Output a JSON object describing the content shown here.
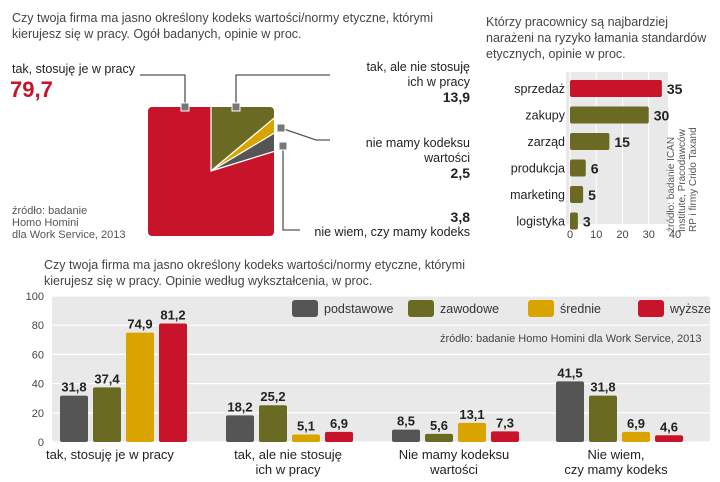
{
  "colors": {
    "red": "#c7142b",
    "olive": "#6b6a22",
    "gold": "#d9a300",
    "gray": "#555555",
    "panel": "#e9e9e9"
  },
  "chart_data": [
    {
      "type": "pie",
      "title": "Czy twoja firma ma jasno określony kodeks wartości/normy etyczne, którymi kierujesz się w pracy. Ogół badanych, opinie w proc.",
      "slices": [
        {
          "label": "tak, stosuję je w pracy",
          "value": 79.7,
          "value_text": "79,7",
          "color": "#c7142b"
        },
        {
          "label": "tak, ale nie stosuję ich w pracy",
          "value": 13.9,
          "value_text": "13,9",
          "color": "#6b6a22"
        },
        {
          "label": "nie mamy kodeksu wartości",
          "value": 2.5,
          "value_text": "2,5",
          "color": "#d9a300"
        },
        {
          "label": "nie wiem, czy mamy kodeks",
          "value": 3.8,
          "value_text": "3,8",
          "color": "#555555"
        }
      ],
      "source": "źródło: badanie Homo Homini dla Work Service, 2013"
    },
    {
      "type": "bar",
      "orientation": "horizontal",
      "title": "Którzy pracownicy są najbardziej narażeni na ryzyko łamania standardów etycznych, opinie w proc.",
      "categories": [
        "sprzedaż",
        "zakupy",
        "zarząd",
        "produkcja",
        "marketing",
        "logistyka"
      ],
      "values": [
        35,
        30,
        15,
        6,
        5,
        3
      ],
      "highlight_color": "#c7142b",
      "bar_color": "#6b6a22",
      "xlim": [
        0,
        40
      ],
      "xticks": [
        0,
        10,
        20,
        30,
        40
      ],
      "source": "źródło: badanie ICAN Institute, Pracodawców RP i firmy Crido Taxand"
    },
    {
      "type": "bar",
      "title": "Czy twoja firma ma jasno określony kodeks wartości/normy etyczne, którymi kierujesz się w pracy. Opinie według wykształcenia, w proc.",
      "categories": [
        "tak, stosuję je w pracy",
        "tak, ale nie stosuję ich w pracy",
        "Nie mamy kodeksu wartości",
        "Nie wiem, czy mamy kodeks"
      ],
      "series": [
        {
          "name": "podstawowe",
          "color": "#555555",
          "values": [
            31.8,
            18.2,
            8.5,
            41.5
          ],
          "labels": [
            "31,8",
            "18,2",
            "8,5",
            "41,5"
          ]
        },
        {
          "name": "zawodowe",
          "color": "#6b6a22",
          "values": [
            37.4,
            25.2,
            5.6,
            31.8
          ],
          "labels": [
            "37,4",
            "25,2",
            "5,6",
            "31,8"
          ]
        },
        {
          "name": "średnie",
          "color": "#d9a300",
          "values": [
            74.9,
            5.1,
            13.1,
            6.9
          ],
          "labels": [
            "74,9",
            "5,1",
            "13,1",
            "6,9"
          ]
        },
        {
          "name": "wyższe",
          "color": "#c7142b",
          "values": [
            81.2,
            6.9,
            7.3,
            4.6
          ],
          "labels": [
            "81,2",
            "6,9",
            "7,3",
            "4,6"
          ]
        }
      ],
      "ylim": [
        0,
        100
      ],
      "yticks": [
        0,
        20,
        40,
        60,
        80,
        100
      ],
      "grid": true,
      "legend": "top-right",
      "source": "źródło: badanie Homo Homini dla Work Service, 2013"
    }
  ],
  "texts": {
    "pie_title_1": "Czy twoja firma ma jasno określony kodeks wartości/normy etyczne, którymi",
    "pie_title_2": "kierujesz się w pracy. Ogół badanych, opinie  w  proc.",
    "pie_lbl_tak": "tak, stosuję je w pracy",
    "pie_val_tak": "79,7",
    "pie_lbl_ale_1": "tak, ale nie stosuję",
    "pie_lbl_ale_2": "ich w pracy",
    "pie_val_ale": "13,9",
    "pie_lbl_nie_1": "nie mamy kodeksu",
    "pie_lbl_nie_2": "wartości",
    "pie_val_nie": "2,5",
    "pie_val_wiem": "3,8",
    "pie_lbl_wiem": "nie wiem, czy mamy kodeks",
    "pie_src_1": "źródło: badanie",
    "pie_src_2": "Homo Homini",
    "pie_src_3": "dla Work Service, 2013",
    "hb_title_1": "Którzy pracownicy są najbardziej",
    "hb_title_2": "narażeni na ryzyko łamania standardów",
    "hb_title_3": "etycznych, opinie w proc.",
    "hb_src_1": "źródło: badanie  ICAN",
    "hb_src_2": "Institute, Pracodawców",
    "hb_src_3": "RP i firmy Crido Taxand",
    "gb_title_1": "Czy twoja firma ma jasno określony kodeks wartości/normy etyczne, którymi",
    "gb_title_2": "kierujesz się w pracy. Opinie według wykształcenia, w proc.",
    "gb_src": "źródło: badanie Homo Homini dla Work Service, 2013",
    "gb_cat_0_1": "tak, stosuję je w pracy",
    "gb_cat_1_1": "tak, ale nie stosuję",
    "gb_cat_1_2": "ich w pracy",
    "gb_cat_2_1": "Nie mamy kodeksu",
    "gb_cat_2_2": "wartości",
    "gb_cat_3_1": "Nie wiem,",
    "gb_cat_3_2": "czy mamy kodeks"
  }
}
